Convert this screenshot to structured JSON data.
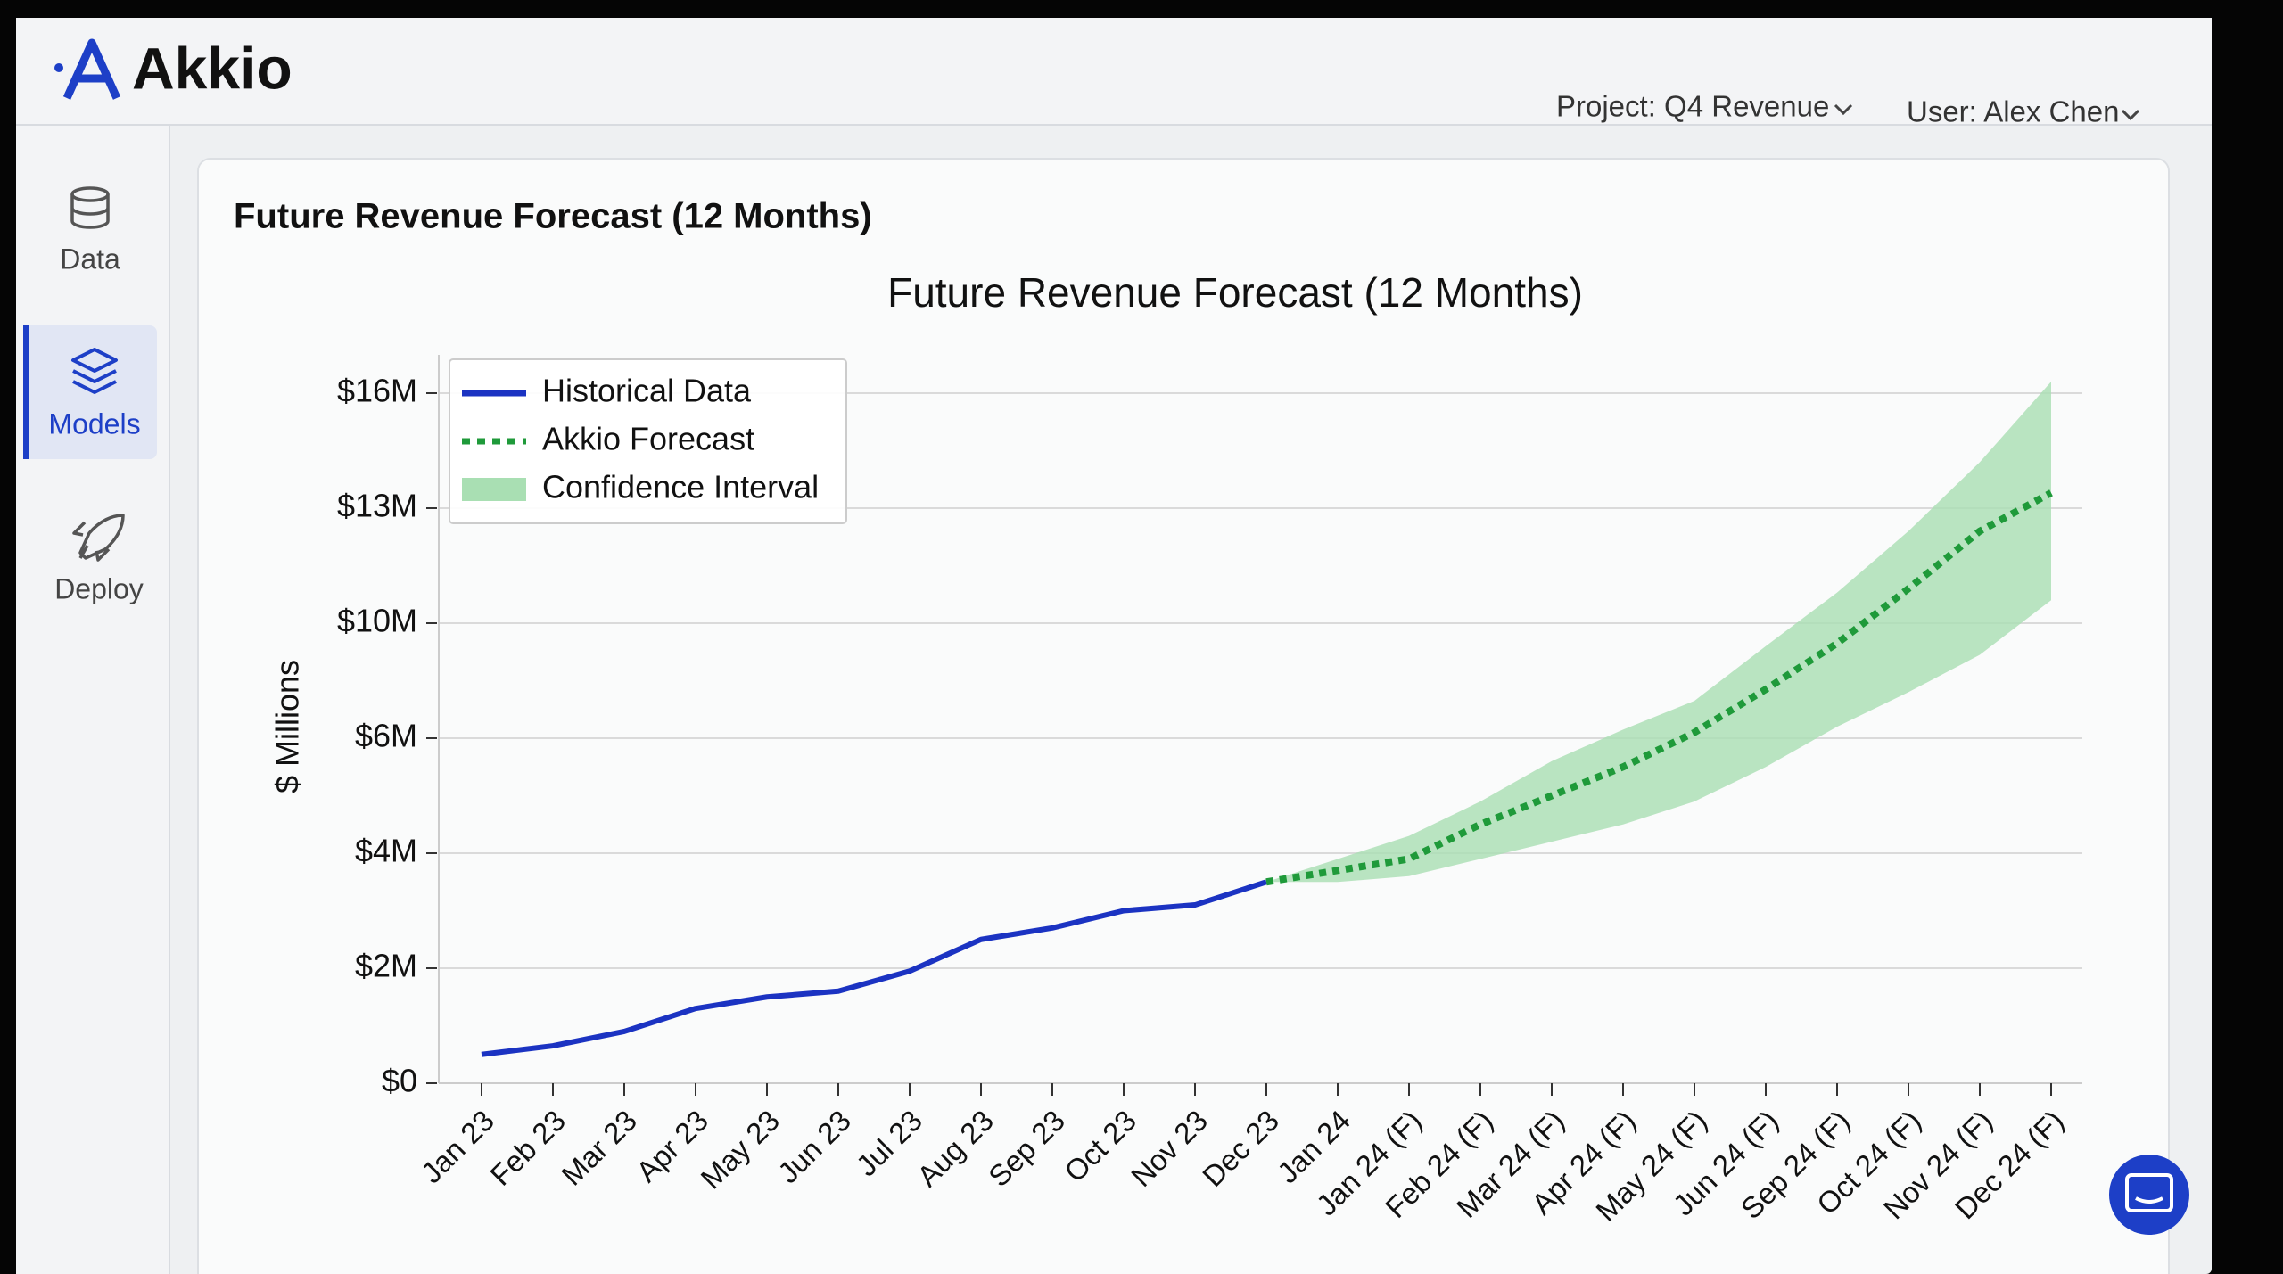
{
  "header": {
    "logo": "Akkio",
    "project": "Project: Q4 Revenue",
    "user": "User: Alex Chen"
  },
  "sidebar": [
    "Data",
    "Models",
    "Deploy"
  ],
  "card": {
    "title": "Future Revenue Forecast (12 Months)"
  },
  "chart_data": {
    "type": "line",
    "title": "Future Revenue Forecast (12 Months)",
    "y_label": "$ Millions",
    "categories": [
      "Jan 23",
      "Feb 23",
      "Mar 23",
      "Apr 23",
      "May 23",
      "Jun 23",
      "Jul 23",
      "Aug 23",
      "Sep 23",
      "Oct 23",
      "Nov 23",
      "Dec 23",
      "Jan 24",
      "Jan 24 (F)",
      "Feb 24 (F)",
      "Mar 24 (F)",
      "Apr 24 (F)",
      "May 24 (F)",
      "Jun 24 (F)",
      "Sep 24 (F)",
      "Oct 24 (F)",
      "Nov 24 (F)",
      "Dec 24 (F)"
    ],
    "series": [
      {
        "name": "Historical Data",
        "color": "#1b33c2",
        "values": [
          0.5,
          0.65,
          0.9,
          1.3,
          1.5,
          1.6,
          1.95,
          2.5,
          2.7,
          3.0,
          3.1,
          3.5,
          null,
          null,
          null,
          null,
          null,
          null,
          null,
          null,
          null,
          null,
          null
        ]
      },
      {
        "name": "Akkio Forecast",
        "color": "#1f9a3a",
        "dash": "dotted",
        "values": [
          null,
          null,
          null,
          null,
          null,
          null,
          null,
          null,
          null,
          null,
          null,
          3.5,
          3.7,
          3.9,
          4.5,
          5.0,
          5.5,
          6.2,
          7.7,
          9.3,
          10.9,
          12.4,
          13.4
        ]
      },
      {
        "name": "Confidence Interval",
        "color": "#a9dfb3",
        "lower": [
          null,
          null,
          null,
          null,
          null,
          null,
          null,
          null,
          null,
          null,
          null,
          3.5,
          3.5,
          3.6,
          3.9,
          4.2,
          4.5,
          4.9,
          5.5,
          6.4,
          7.6,
          8.9,
          10.6
        ],
        "upper": [
          null,
          null,
          null,
          null,
          null,
          null,
          null,
          null,
          null,
          null,
          null,
          3.5,
          3.9,
          4.3,
          4.9,
          5.6,
          6.3,
          7.3,
          9.2,
          10.8,
          12.4,
          14.2,
          16.3
        ]
      }
    ],
    "ylim": [
      0,
      17
    ],
    "yticks": [
      {
        "value": 0,
        "label": "$0"
      },
      {
        "value": 2,
        "label": "$2M"
      },
      {
        "value": 4,
        "label": "$4M"
      },
      {
        "value": 6,
        "label": "$6M"
      },
      {
        "value": 10,
        "label": "$10M"
      },
      {
        "value": 13,
        "label": "$13M"
      },
      {
        "value": 16,
        "label": "$16M"
      }
    ],
    "grid": true,
    "legend": "upper left"
  }
}
